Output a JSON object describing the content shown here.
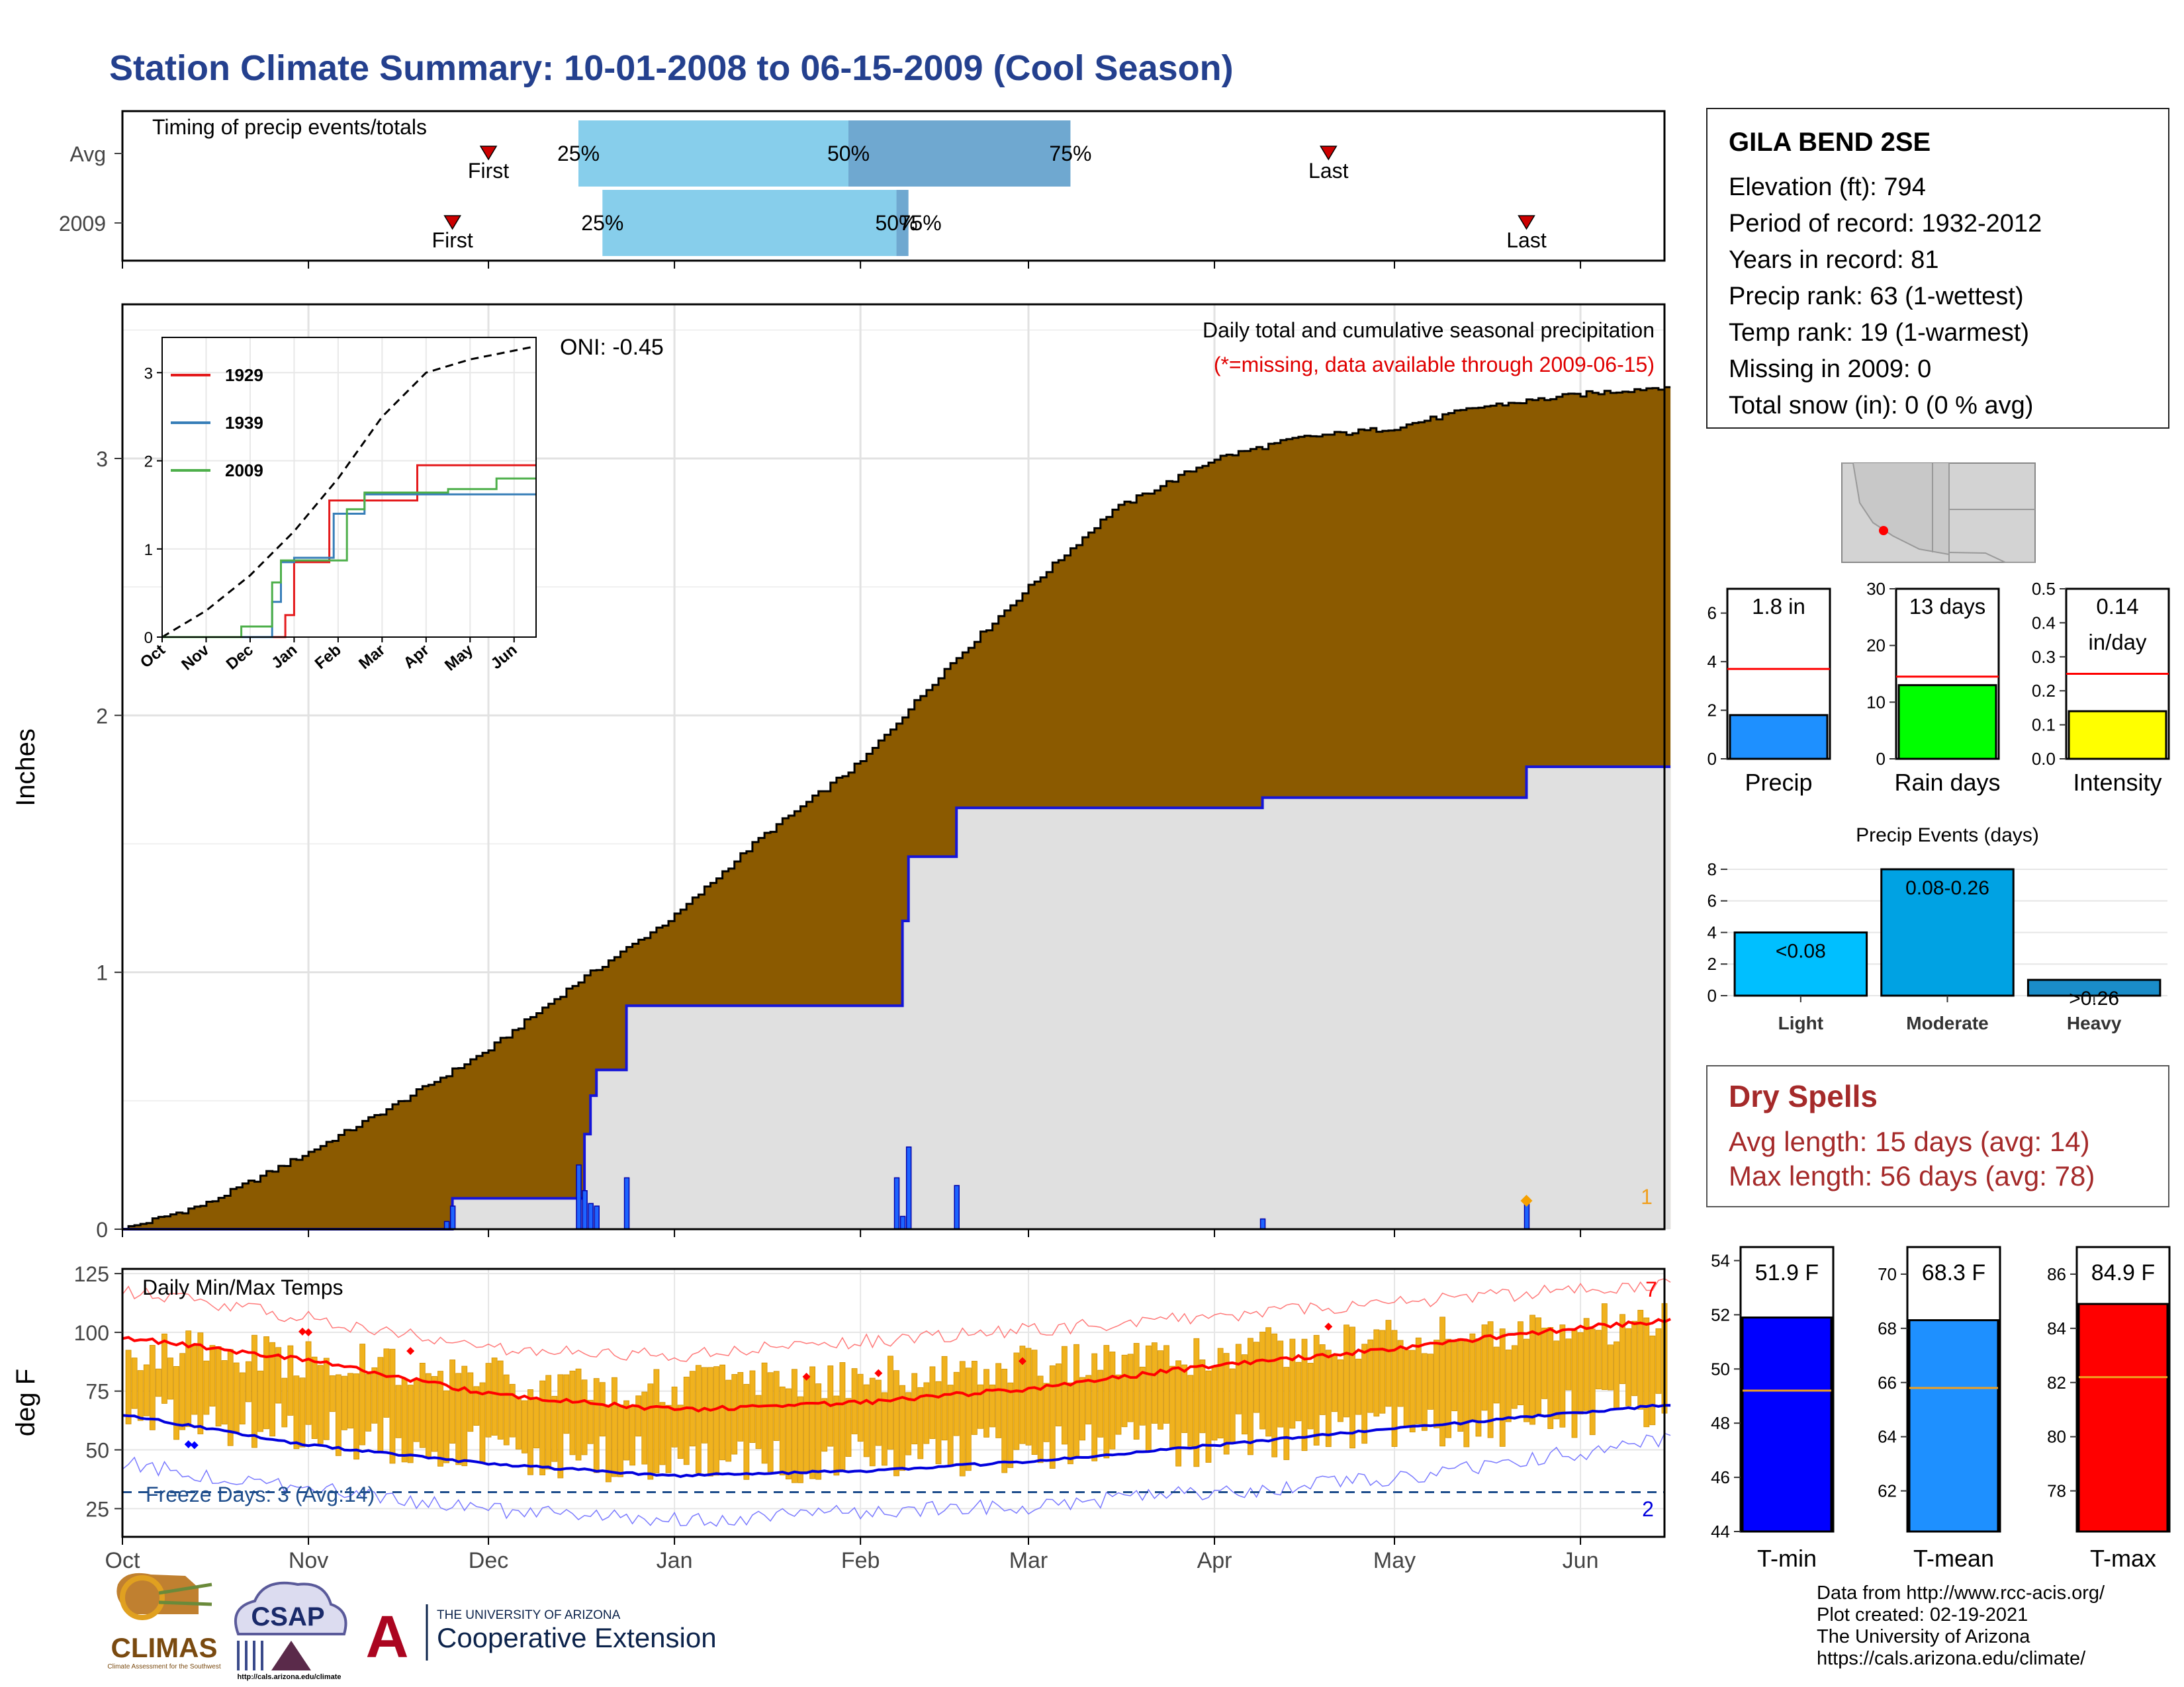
{
  "header": {
    "title": "Station Climate Summary: 10-01-2008 to 06-15-2009 (Cool Season)"
  },
  "timing_panel": {
    "label": "Timing of precip events/totals",
    "rows": [
      {
        "name": "Avg",
        "first_date": "2008-12-01",
        "last_date": "2009-04-20",
        "p25_date": "2008-12-16",
        "p50_date": "2009-01-30",
        "p75_date": "2009-03-08",
        "p25_label": "25%",
        "p50_label": "50%",
        "p75_label": "75%",
        "first_label": "First",
        "last_label": "Last"
      },
      {
        "name": "2009",
        "first_date": "2008-11-25",
        "last_date": "2009-05-23",
        "p25_date": "2008-12-20",
        "p50_date": "2009-02-07",
        "p75_date": "2009-02-09",
        "p25_label": "25%",
        "p50_label": "50%",
        "p75_label": "75%",
        "first_label": "First",
        "last_label": "Last"
      }
    ]
  },
  "precip_panel": {
    "ylabel": "Inches",
    "subtitle": "Daily total and cumulative seasonal precipitation",
    "missing_note": "(*=missing, data available through 2009-06-15)",
    "oni": "ONI: -0.45",
    "missing_count": "1",
    "yticks": [
      "0",
      "1",
      "2",
      "3"
    ],
    "ylim": [
      0,
      3.6
    ]
  },
  "inset": {
    "legend": [
      "1929",
      "1939",
      "2009"
    ],
    "legend_colors": [
      "#e41a1c",
      "#377eb8",
      "#4daf4a"
    ],
    "yticks": [
      "0",
      "1",
      "2",
      "3"
    ],
    "xticks": [
      "Oct",
      "Nov",
      "Dec",
      "Jan",
      "Feb",
      "Mar",
      "Apr",
      "May",
      "Jun"
    ]
  },
  "temp_panel": {
    "ylabel": "deg F",
    "label": "Daily Min/Max Temps",
    "freeze_text": "Freeze Days: 3 (Avg:14)",
    "freeze_line": 32,
    "yticks": [
      "25",
      "50",
      "75",
      "100",
      "125"
    ],
    "ylim": [
      13,
      127
    ],
    "count_hot": "7",
    "count_cold": "2"
  },
  "x_axis": {
    "months": [
      "Oct",
      "Nov",
      "Dec",
      "Jan",
      "Feb",
      "Mar",
      "Apr",
      "May",
      "Jun"
    ]
  },
  "station": {
    "name": "GILA BEND 2SE",
    "lines": [
      "Elevation (ft): 794",
      "Period of record: 1932-2012",
      "Years in record: 81",
      "Precip rank: 63 (1-wettest)",
      "Temp rank: 19 (1-warmest)",
      "Missing in 2009: 0",
      "Total snow (in): 0 (0 % avg)"
    ]
  },
  "mini_bars": [
    {
      "label": "Precip",
      "value_text": "1.8 in",
      "value": 1.8,
      "avg": 3.7,
      "ylim": [
        0,
        7
      ],
      "yticks": [
        "0",
        "2",
        "4",
        "6"
      ],
      "tick_values": [
        0,
        2,
        4,
        6
      ],
      "color": "#1e90ff"
    },
    {
      "label": "Rain days",
      "value_text": "13 days",
      "value": 13,
      "avg": 14.5,
      "ylim": [
        0,
        30
      ],
      "yticks": [
        "0",
        "10",
        "20",
        "30"
      ],
      "tick_values": [
        0,
        10,
        20,
        30
      ],
      "color": "#00ff00"
    },
    {
      "label": "Intensity",
      "value_text": "0.14",
      "value_text2": "in/day",
      "value": 0.14,
      "avg": 0.25,
      "ylim": [
        0,
        0.5
      ],
      "yticks": [
        "0.0",
        "0.1",
        "0.2",
        "0.3",
        "0.4",
        "0.5"
      ],
      "tick_values": [
        0,
        0.1,
        0.2,
        0.3,
        0.4,
        0.5
      ],
      "color": "#ffff00"
    }
  ],
  "events_chart": {
    "title": "Precip Events (days)",
    "categories": [
      "Light",
      "Moderate",
      "Heavy"
    ],
    "range_labels": [
      "<0.08",
      "0.08-0.26",
      ">0.26"
    ],
    "values": [
      4,
      8,
      1
    ],
    "ylim": [
      0,
      8.5
    ],
    "yticks": [
      "0",
      "2",
      "4",
      "6",
      "8"
    ],
    "tick_values": [
      0,
      2,
      4,
      6,
      8
    ],
    "colors": [
      "#00bfff",
      "#00a2e3",
      "#1a8cc8"
    ]
  },
  "dry_spells": {
    "title": "Dry Spells",
    "avg_length": "Avg length: 15 days (avg: 14)",
    "max_length": "Max length: 56 days (avg: 78)"
  },
  "temp_bars": [
    {
      "label": "T-min",
      "value_text": "51.9 F",
      "value": 51.9,
      "avg": 49.2,
      "ylim": [
        44,
        54.5
      ],
      "yticks": [
        "44",
        "46",
        "48",
        "50",
        "52",
        "54"
      ],
      "tick_values": [
        44,
        46,
        48,
        50,
        52,
        54
      ],
      "color": "#0000ff"
    },
    {
      "label": "T-mean",
      "value_text": "68.3 F",
      "value": 68.3,
      "avg": 65.8,
      "ylim": [
        60.5,
        71
      ],
      "yticks": [
        "62",
        "64",
        "66",
        "68",
        "70"
      ],
      "tick_values": [
        62,
        64,
        66,
        68,
        70
      ],
      "color": "#1e90ff"
    },
    {
      "label": "T-max",
      "value_text": "84.9 F",
      "value": 84.9,
      "avg": 82.2,
      "ylim": [
        76.5,
        87
      ],
      "yticks": [
        "78",
        "80",
        "82",
        "84",
        "86"
      ],
      "tick_values": [
        78,
        80,
        82,
        84,
        86
      ],
      "color": "#ff0000"
    }
  ],
  "credits": [
    "Data from http://www.rcc-acis.org/",
    "Plot created: 02-19-2021",
    "The University of Arizona",
    "https://cals.arizona.edu/climate/"
  ],
  "logos": {
    "climas": "CLIMAS",
    "climas_sub": "Climate Assessment for the Southwest",
    "csap": "CSAP",
    "csap_url": "http://cals.arizona.edu/climate",
    "ua_letter": "A",
    "ua_top": "THE UNIVERSITY OF ARIZONA",
    "ua_bottom": "Cooperative Extension"
  },
  "chart_data": [
    {
      "type": "area",
      "title": "Daily total and cumulative seasonal precipitation",
      "ylabel": "Inches",
      "x_range": [
        "2008-10-01",
        "2009-06-15"
      ],
      "series": [
        {
          "name": "",
          "role": "average cumulative (brown area)",
          "x": [
            "2008-10-01",
            "2008-10-15",
            "2008-11-01",
            "2008-11-15",
            "2008-12-01",
            "2008-12-15",
            "2009-01-01",
            "2009-01-15",
            "2009-02-01",
            "2009-02-15",
            "2009-03-01",
            "2009-03-15",
            "2009-04-01",
            "2009-04-15",
            "2009-05-01",
            "2009-05-15",
            "2009-06-01",
            "2009-06-15"
          ],
          "y": [
            0.0,
            0.1,
            0.3,
            0.48,
            0.7,
            0.95,
            1.22,
            1.52,
            1.82,
            2.18,
            2.5,
            2.8,
            3.0,
            3.08,
            3.12,
            3.2,
            3.25,
            3.28
          ]
        },
        {
          "name": "",
          "role": "2009 cumulative (blue line)",
          "x": [
            "2008-10-01",
            "2008-11-24",
            "2008-11-25",
            "2008-12-16",
            "2008-12-17",
            "2008-12-18",
            "2008-12-19",
            "2008-12-23",
            "2008-12-24",
            "2009-02-07",
            "2009-02-08",
            "2009-02-09",
            "2009-02-17",
            "2009-04-09",
            "2009-05-23",
            "2009-06-15"
          ],
          "y": [
            0.0,
            0.0,
            0.12,
            0.12,
            0.37,
            0.52,
            0.62,
            0.62,
            0.87,
            0.87,
            1.2,
            1.45,
            1.64,
            1.68,
            1.8,
            1.8
          ]
        },
        {
          "name": "",
          "role": "2009 daily totals (blue bars)",
          "x": [
            "2008-11-24",
            "2008-11-25",
            "2008-12-16",
            "2008-12-17",
            "2008-12-18",
            "2008-12-19",
            "2008-12-24",
            "2009-02-07",
            "2009-02-08",
            "2009-02-09",
            "2009-02-17",
            "2009-04-09",
            "2009-05-23"
          ],
          "y": [
            0.03,
            0.09,
            0.25,
            0.15,
            0.1,
            0.09,
            0.2,
            0.2,
            0.05,
            0.32,
            0.17,
            0.04,
            0.12
          ]
        }
      ],
      "ylim": [
        0,
        3.6
      ]
    },
    {
      "type": "line",
      "title": "",
      "role": "inset cumulative comparison",
      "categories": [
        "Oct",
        "Nov",
        "Dec",
        "Jan",
        "Feb",
        "Mar",
        "Apr",
        "May",
        "Jun"
      ],
      "series": [
        {
          "name": "",
          "role": "average cumulative (dashed black)",
          "x": [
            0,
            1,
            2,
            3,
            4,
            5,
            6,
            7,
            8,
            8.5
          ],
          "y": [
            0.0,
            0.3,
            0.7,
            1.2,
            1.8,
            2.5,
            3.0,
            3.15,
            3.25,
            3.3
          ]
        },
        {
          "name": "1929",
          "x": [
            0,
            2.6,
            2.8,
            3.0,
            3.6,
            3.8,
            5.8,
            8.5
          ],
          "y": [
            0.0,
            0.0,
            0.25,
            0.85,
            0.85,
            1.55,
            1.95,
            1.95
          ]
        },
        {
          "name": "1939",
          "x": [
            0,
            2.0,
            2.5,
            2.7,
            3.0,
            3.9,
            4.6,
            8.5
          ],
          "y": [
            0.0,
            0.0,
            0.4,
            0.85,
            0.9,
            1.4,
            1.62,
            1.62
          ]
        },
        {
          "name": "2009",
          "x": [
            0,
            1.8,
            2.5,
            2.7,
            3.7,
            4.2,
            4.6,
            6.5,
            7.6,
            8.5
          ],
          "y": [
            0.0,
            0.12,
            0.62,
            0.87,
            0.87,
            1.45,
            1.64,
            1.68,
            1.8,
            1.8
          ]
        }
      ],
      "ylim": [
        0,
        3.4
      ]
    },
    {
      "type": "line",
      "title": "Daily Min/Max Temps",
      "ylabel": "deg F",
      "x_range": [
        "2008-10-01",
        "2009-06-15"
      ],
      "series": [
        {
          "name": "",
          "role": "average max (red line)",
          "x": [
            "2008-10-01",
            "2008-11-01",
            "2008-12-01",
            "2009-01-01",
            "2009-02-01",
            "2009-03-01",
            "2009-04-01",
            "2009-05-01",
            "2009-06-01",
            "2009-06-15"
          ],
          "y": [
            98,
            88,
            74,
            67,
            70,
            76,
            86,
            93,
            102,
            105
          ]
        },
        {
          "name": "",
          "role": "average min (blue line)",
          "x": [
            "2008-10-01",
            "2008-11-01",
            "2008-12-01",
            "2009-01-01",
            "2009-02-01",
            "2009-03-01",
            "2009-04-01",
            "2009-05-01",
            "2009-06-01",
            "2009-06-15"
          ],
          "y": [
            65,
            52,
            44,
            39,
            41,
            45,
            52,
            59,
            66,
            69
          ]
        },
        {
          "name": "",
          "role": "record max (thin red)",
          "x": [
            "2008-10-01",
            "2008-11-01",
            "2008-12-01",
            "2009-01-01",
            "2009-02-01",
            "2009-03-01",
            "2009-04-01",
            "2009-05-01",
            "2009-06-01",
            "2009-06-15"
          ],
          "y": [
            118,
            106,
            93,
            90,
            96,
            101,
            107,
            113,
            118,
            120
          ]
        },
        {
          "name": "",
          "role": "record min (thin blue)",
          "x": [
            "2008-10-01",
            "2008-11-01",
            "2008-12-01",
            "2009-01-01",
            "2009-02-01",
            "2009-03-01",
            "2009-04-01",
            "2009-05-01",
            "2009-06-01",
            "2009-06-15"
          ],
          "y": [
            44,
            34,
            24,
            20,
            24,
            26,
            32,
            38,
            49,
            54
          ]
        },
        {
          "name": "",
          "role": "daily observed range (orange bars)",
          "x": [
            "2008-10-15",
            "2008-11-15",
            "2008-12-15",
            "2009-01-15",
            "2009-02-15",
            "2009-03-15",
            "2009-04-15",
            "2009-05-15",
            "2009-06-10"
          ],
          "y_low": [
            62,
            55,
            46,
            44,
            48,
            52,
            56,
            60,
            68
          ],
          "y_high": [
            92,
            85,
            77,
            78,
            84,
            88,
            94,
            100,
            104
          ]
        }
      ],
      "ylim": [
        13,
        127
      ]
    },
    {
      "type": "bar",
      "title": "",
      "categories": [
        "Precip"
      ],
      "values": [
        1.8
      ],
      "ylabel": "",
      "ylim": [
        0,
        7
      ]
    },
    {
      "type": "bar",
      "title": "",
      "categories": [
        "Rain days"
      ],
      "values": [
        13
      ],
      "ylabel": "",
      "ylim": [
        0,
        30
      ]
    },
    {
      "type": "bar",
      "title": "",
      "categories": [
        "Intensity"
      ],
      "values": [
        0.14
      ],
      "ylabel": "",
      "ylim": [
        0,
        0.5
      ]
    },
    {
      "type": "bar",
      "title": "Precip Events (days)",
      "categories": [
        "Light",
        "Moderate",
        "Heavy"
      ],
      "values": [
        4,
        8,
        1
      ],
      "ylim": [
        0,
        8.5
      ]
    },
    {
      "type": "bar",
      "title": "",
      "categories": [
        "T-min"
      ],
      "values": [
        51.9
      ],
      "ylim": [
        44,
        54.5
      ]
    },
    {
      "type": "bar",
      "title": "",
      "categories": [
        "T-mean"
      ],
      "values": [
        68.3
      ],
      "ylim": [
        60.5,
        71
      ]
    },
    {
      "type": "bar",
      "title": "",
      "categories": [
        "T-max"
      ],
      "values": [
        84.9
      ],
      "ylim": [
        76.5,
        87
      ]
    }
  ]
}
